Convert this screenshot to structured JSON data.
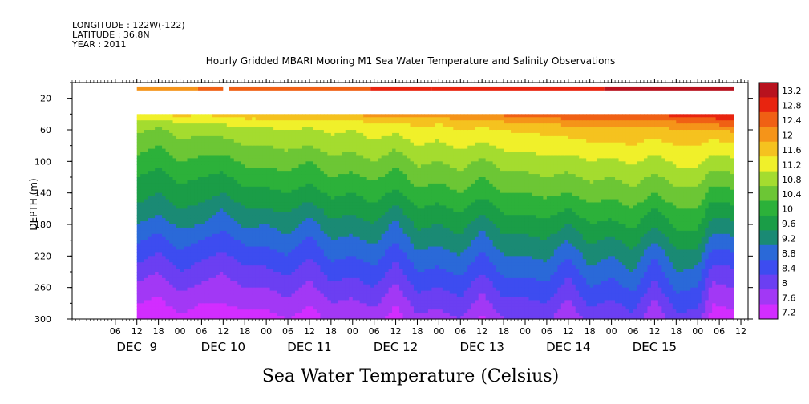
{
  "header": {
    "longitude": "LONGITUDE : 122W(-122)",
    "latitude": "LATITUDE : 36.8N",
    "year": "YEAR : 2011"
  },
  "chart_data": {
    "type": "heatmap",
    "title": "Hourly Gridded MBARI Mooring M1 Sea Water Temperature and Salinity Observations",
    "xlabel": "",
    "ylabel": "DEPTH (m)",
    "colorbar_label": "Sea Water Temperature (Celsius)",
    "x_unit": "hours",
    "x_start": "DEC 8 18:00",
    "xlim": [
      -18,
      170
    ],
    "data_start_hour": 0,
    "ylim": [
      300,
      0
    ],
    "y_ticks": [
      20,
      60,
      100,
      140,
      180,
      220,
      260,
      300
    ],
    "x_ticks": [
      {
        "label": "06",
        "hour": -6
      },
      {
        "label": "12",
        "hour": 0
      },
      {
        "label": "18",
        "hour": 6
      },
      {
        "label": "00",
        "hour": 12
      },
      {
        "label": "06",
        "hour": 18
      },
      {
        "label": "12",
        "hour": 24
      },
      {
        "label": "18",
        "hour": 30
      },
      {
        "label": "00",
        "hour": 36
      },
      {
        "label": "06",
        "hour": 42
      },
      {
        "label": "12",
        "hour": 48
      },
      {
        "label": "18",
        "hour": 54
      },
      {
        "label": "00",
        "hour": 60
      },
      {
        "label": "06",
        "hour": 66
      },
      {
        "label": "12",
        "hour": 72
      },
      {
        "label": "18",
        "hour": 78
      },
      {
        "label": "00",
        "hour": 84
      },
      {
        "label": "06",
        "hour": 90
      },
      {
        "label": "12",
        "hour": 96
      },
      {
        "label": "18",
        "hour": 102
      },
      {
        "label": "00",
        "hour": 108
      },
      {
        "label": "06",
        "hour": 114
      },
      {
        "label": "12",
        "hour": 120
      },
      {
        "label": "18",
        "hour": 126
      },
      {
        "label": "00",
        "hour": 132
      },
      {
        "label": "06",
        "hour": 138
      },
      {
        "label": "12",
        "hour": 144
      },
      {
        "label": "18",
        "hour": 150
      },
      {
        "label": "00",
        "hour": 156
      },
      {
        "label": "06",
        "hour": 162
      },
      {
        "label": "12",
        "hour": 168
      }
    ],
    "day_labels": [
      {
        "label": "DEC  9",
        "hour": 0
      },
      {
        "label": "DEC 10",
        "hour": 24
      },
      {
        "label": "DEC 11",
        "hour": 48
      },
      {
        "label": "DEC 12",
        "hour": 72
      },
      {
        "label": "DEC 13",
        "hour": 96
      },
      {
        "label": "DEC 14",
        "hour": 120
      },
      {
        "label": "DEC 15",
        "hour": 144
      }
    ],
    "colorbar_levels": [
      "13.2",
      "12.8",
      "12.4",
      "12",
      "11.6",
      "11.2",
      "10.8",
      "10.4",
      "10",
      "9.6",
      "9.2",
      "8.8",
      "8.4",
      "8",
      "7.6",
      "7.2"
    ],
    "colormap": [
      {
        "min": 7.2,
        "max": 7.6,
        "color": "#d22dff"
      },
      {
        "min": 7.6,
        "max": 8.0,
        "color": "#a238f5"
      },
      {
        "min": 8.0,
        "max": 8.4,
        "color": "#6b3ff2"
      },
      {
        "min": 8.4,
        "max": 8.8,
        "color": "#3d4cf0"
      },
      {
        "min": 8.8,
        "max": 9.2,
        "color": "#2a69d8"
      },
      {
        "min": 9.2,
        "max": 9.6,
        "color": "#1a8a74"
      },
      {
        "min": 9.6,
        "max": 10.0,
        "color": "#1a9d47"
      },
      {
        "min": 10.0,
        "max": 10.4,
        "color": "#2cb13a"
      },
      {
        "min": 10.4,
        "max": 10.8,
        "color": "#6cc635"
      },
      {
        "min": 10.8,
        "max": 11.2,
        "color": "#a4dc2f"
      },
      {
        "min": 11.2,
        "max": 11.6,
        "color": "#f0f02a"
      },
      {
        "min": 11.6,
        "max": 12.0,
        "color": "#f5c21f"
      },
      {
        "min": 12.0,
        "max": 12.4,
        "color": "#f59419"
      },
      {
        "min": 12.4,
        "max": 12.8,
        "color": "#f06014"
      },
      {
        "min": 12.8,
        "max": 13.2,
        "color": "#e8240f"
      },
      {
        "min": 13.2,
        "max": 13.6,
        "color": "#b8121e"
      }
    ],
    "surface_band": {
      "depth_range": [
        5,
        10
      ],
      "gap": {
        "from_hour": 24,
        "to_hour": 25.5
      },
      "segments": [
        {
          "from_hour": 0,
          "to_hour": 17,
          "value": 12.1
        },
        {
          "from_hour": 17,
          "to_hour": 24,
          "value": 12.4
        },
        {
          "from_hour": 25.5,
          "to_hour": 65,
          "value": 12.6
        },
        {
          "from_hour": 65,
          "to_hour": 82,
          "value": 12.9
        },
        {
          "from_hour": 82,
          "to_hour": 130,
          "value": 13.0
        },
        {
          "from_hour": 130,
          "to_hour": 166,
          "value": 13.3
        }
      ]
    },
    "profile_depths": [
      40,
      50,
      60,
      80,
      100,
      120,
      140,
      160,
      180,
      200,
      220,
      240,
      260,
      280,
      300
    ],
    "profiles": [
      {
        "hour": 0,
        "t": [
          11.7,
          11.2,
          10.9,
          10.6,
          10.3,
          10.0,
          9.8,
          9.5,
          9.2,
          8.9,
          8.6,
          8.2,
          7.9,
          7.6,
          7.2
        ]
      },
      {
        "hour": 6,
        "t": [
          11.5,
          11.0,
          10.7,
          10.4,
          10.1,
          9.8,
          9.6,
          9.3,
          9.0,
          8.6,
          8.3,
          8.0,
          7.7,
          7.5,
          7.3
        ]
      },
      {
        "hour": 12,
        "t": [
          11.8,
          11.3,
          11.0,
          10.7,
          10.4,
          10.1,
          9.9,
          9.6,
          9.3,
          9.0,
          8.7,
          8.4,
          8.1,
          7.8,
          7.5
        ]
      },
      {
        "hour": 18,
        "t": [
          11.6,
          11.2,
          10.9,
          10.6,
          10.3,
          10.0,
          9.8,
          9.5,
          9.2,
          8.8,
          8.5,
          8.2,
          7.9,
          7.6,
          7.4
        ]
      },
      {
        "hour": 24,
        "t": [
          11.8,
          11.3,
          11.0,
          10.6,
          10.2,
          9.9,
          9.6,
          9.2,
          8.9,
          8.6,
          8.3,
          8.0,
          7.8,
          7.6,
          7.4
        ]
      },
      {
        "hour": 30,
        "t": [
          11.9,
          11.4,
          11.1,
          10.8,
          10.5,
          10.2,
          9.9,
          9.6,
          9.3,
          8.9,
          8.6,
          8.3,
          8.0,
          7.7,
          7.5
        ]
      },
      {
        "hour": 36,
        "t": [
          11.9,
          11.4,
          11.1,
          10.8,
          10.5,
          10.2,
          9.9,
          9.6,
          9.2,
          8.9,
          8.6,
          8.3,
          8.0,
          7.7,
          7.4
        ]
      },
      {
        "hour": 42,
        "t": [
          12.0,
          11.5,
          11.2,
          10.9,
          10.6,
          10.3,
          10.0,
          9.7,
          9.4,
          9.1,
          8.8,
          8.5,
          8.2,
          7.9,
          7.6
        ]
      },
      {
        "hour": 48,
        "t": [
          11.9,
          11.4,
          11.1,
          10.8,
          10.4,
          10.1,
          9.8,
          9.4,
          9.0,
          8.7,
          8.4,
          8.1,
          7.9,
          7.6,
          7.4
        ]
      },
      {
        "hour": 54,
        "t": [
          12.1,
          11.6,
          11.3,
          11.0,
          10.7,
          10.4,
          10.1,
          9.8,
          9.5,
          9.2,
          8.9,
          8.6,
          8.3,
          8.0,
          7.7
        ]
      },
      {
        "hour": 60,
        "t": [
          12.0,
          11.5,
          11.2,
          10.9,
          10.6,
          10.3,
          10.0,
          9.7,
          9.4,
          9.1,
          8.8,
          8.5,
          8.2,
          7.9,
          7.6
        ]
      },
      {
        "hour": 66,
        "t": [
          12.2,
          11.7,
          11.4,
          11.1,
          10.8,
          10.5,
          10.2,
          9.9,
          9.6,
          9.3,
          9.0,
          8.7,
          8.4,
          8.1,
          7.8
        ]
      },
      {
        "hour": 72,
        "t": [
          12.1,
          11.6,
          11.3,
          10.9,
          10.5,
          10.2,
          9.9,
          9.5,
          9.1,
          8.8,
          8.5,
          8.2,
          7.9,
          7.6,
          7.4
        ]
      },
      {
        "hour": 78,
        "t": [
          12.3,
          11.8,
          11.5,
          11.2,
          10.9,
          10.6,
          10.3,
          10.0,
          9.7,
          9.4,
          9.1,
          8.8,
          8.5,
          8.2,
          7.9
        ]
      },
      {
        "hour": 84,
        "t": [
          12.2,
          11.7,
          11.4,
          11.1,
          10.8,
          10.5,
          10.2,
          9.9,
          9.6,
          9.3,
          9.0,
          8.7,
          8.4,
          8.1,
          7.8
        ]
      },
      {
        "hour": 90,
        "t": [
          12.4,
          11.9,
          11.6,
          11.3,
          11.0,
          10.7,
          10.4,
          10.1,
          9.8,
          9.5,
          9.2,
          8.9,
          8.6,
          8.3,
          8.0
        ]
      },
      {
        "hour": 96,
        "t": [
          12.3,
          11.8,
          11.5,
          11.1,
          10.7,
          10.4,
          10.1,
          9.7,
          9.3,
          9.0,
          8.7,
          8.4,
          8.1,
          7.8,
          7.5
        ]
      },
      {
        "hour": 102,
        "t": [
          12.5,
          12.0,
          11.6,
          11.3,
          11.0,
          10.7,
          10.4,
          10.1,
          9.8,
          9.5,
          9.2,
          8.9,
          8.6,
          8.3,
          8.0
        ]
      },
      {
        "hour": 108,
        "t": [
          12.6,
          12.0,
          11.7,
          11.3,
          11.0,
          10.7,
          10.4,
          10.1,
          9.8,
          9.5,
          9.2,
          8.9,
          8.6,
          8.3,
          8.0
        ]
      },
      {
        "hour": 114,
        "t": [
          12.7,
          12.1,
          11.7,
          11.4,
          11.1,
          10.8,
          10.5,
          10.2,
          9.9,
          9.6,
          9.3,
          9.0,
          8.7,
          8.4,
          8.1
        ]
      },
      {
        "hour": 120,
        "t": [
          12.8,
          12.2,
          11.8,
          11.4,
          11.0,
          10.7,
          10.4,
          10.0,
          9.6,
          9.2,
          8.8,
          8.5,
          8.2,
          7.9,
          7.6
        ]
      },
      {
        "hour": 126,
        "t": [
          12.9,
          12.3,
          11.9,
          11.5,
          11.2,
          10.9,
          10.6,
          10.3,
          10.0,
          9.7,
          9.4,
          9.1,
          8.8,
          8.5,
          8.2
        ]
      },
      {
        "hour": 132,
        "t": [
          12.9,
          12.3,
          11.9,
          11.5,
          11.1,
          10.8,
          10.5,
          10.2,
          9.9,
          9.5,
          9.2,
          8.9,
          8.6,
          8.3,
          8.0
        ]
      },
      {
        "hour": 138,
        "t": [
          12.9,
          12.3,
          11.9,
          11.6,
          11.3,
          11.0,
          10.7,
          10.4,
          10.1,
          9.8,
          9.5,
          9.2,
          8.9,
          8.6,
          8.3
        ]
      },
      {
        "hour": 144,
        "t": [
          12.8,
          12.2,
          11.8,
          11.4,
          11.0,
          10.7,
          10.4,
          10.0,
          9.6,
          9.2,
          8.8,
          8.5,
          8.2,
          7.9,
          7.6
        ]
      },
      {
        "hour": 150,
        "t": [
          13.0,
          12.4,
          12.0,
          11.6,
          11.3,
          11.0,
          10.7,
          10.4,
          10.1,
          9.8,
          9.5,
          9.2,
          8.9,
          8.6,
          8.3
        ]
      },
      {
        "hour": 156,
        "t": [
          13.1,
          12.6,
          12.0,
          11.6,
          11.3,
          11.0,
          10.7,
          10.4,
          10.1,
          9.8,
          9.4,
          9.1,
          8.8,
          8.5,
          8.2
        ]
      },
      {
        "hour": 160,
        "t": [
          13.0,
          12.6,
          11.9,
          11.4,
          11.0,
          10.6,
          10.2,
          9.8,
          9.4,
          9.0,
          8.6,
          8.2,
          7.9,
          7.6,
          7.4
        ]
      },
      {
        "hour": 166,
        "t": [
          13.2,
          12.8,
          12.1,
          11.5,
          11.1,
          10.7,
          10.3,
          9.9,
          9.5,
          9.1,
          8.7,
          8.3,
          8.0,
          7.7,
          7.5
        ]
      }
    ]
  }
}
